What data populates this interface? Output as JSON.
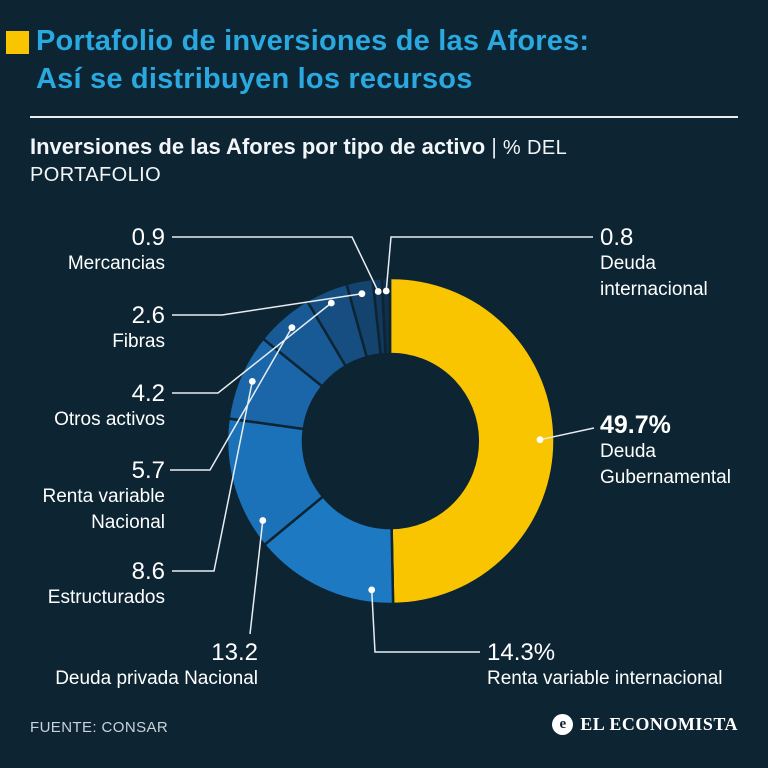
{
  "page": {
    "background": "#0d2433"
  },
  "header": {
    "title": "Portafolio de inversiones de las Afores:\nAsí se distribuyen los recursos",
    "title_color": "#29a9e0",
    "accent_color": "#f8c500"
  },
  "subtitle": {
    "bold": "Inversiones de las Afores por tipo de activo",
    "separator": "|",
    "suffix": "% DEL",
    "suffix2": "PORTAFOLIO"
  },
  "chart_data": {
    "type": "pie",
    "donut": true,
    "title": "Inversiones de las Afores por tipo de activo",
    "unit": "% del portafolio",
    "total": 100,
    "segments": [
      {
        "label": "Deuda Gubernamental",
        "value": 49.7,
        "display": "49.7%",
        "name_display": "Deuda\nGubernamental",
        "color": "#f8c500"
      },
      {
        "label": "Renta variable internacional",
        "value": 14.3,
        "display": "14.3%",
        "name_display": "Renta variable internacional",
        "color": "#1d7ac2"
      },
      {
        "label": "Deuda privada Nacional",
        "value": 13.2,
        "display": "13.2",
        "name_display": "Deuda privada Nacional",
        "color": "#1b72b8"
      },
      {
        "label": "Estructurados",
        "value": 8.6,
        "display": "8.6",
        "name_display": "Estructurados",
        "color": "#1a66a8"
      },
      {
        "label": "Renta variable Nacional",
        "value": 5.7,
        "display": "5.7",
        "name_display": "Renta variable\nNacional",
        "color": "#185a95"
      },
      {
        "label": "Otros activos",
        "value": 4.2,
        "display": "4.2",
        "name_display": "Otros activos",
        "color": "#164e81"
      },
      {
        "label": "Fibras",
        "value": 2.6,
        "display": "2.6",
        "name_display": "Fibras",
        "color": "#14436e"
      },
      {
        "label": "Mercancias",
        "value": 0.9,
        "display": "0.9",
        "name_display": "Mercancias",
        "color": "#12395d"
      },
      {
        "label": "Deuda internacional",
        "value": 0.8,
        "display": "0.8",
        "name_display": "Deuda\ninternacional",
        "color": "#0f2f4d"
      }
    ]
  },
  "footer": {
    "source": "FUENTE: CONSAR",
    "logo": "EL ECONOMISTA",
    "logo_letter": "e"
  }
}
